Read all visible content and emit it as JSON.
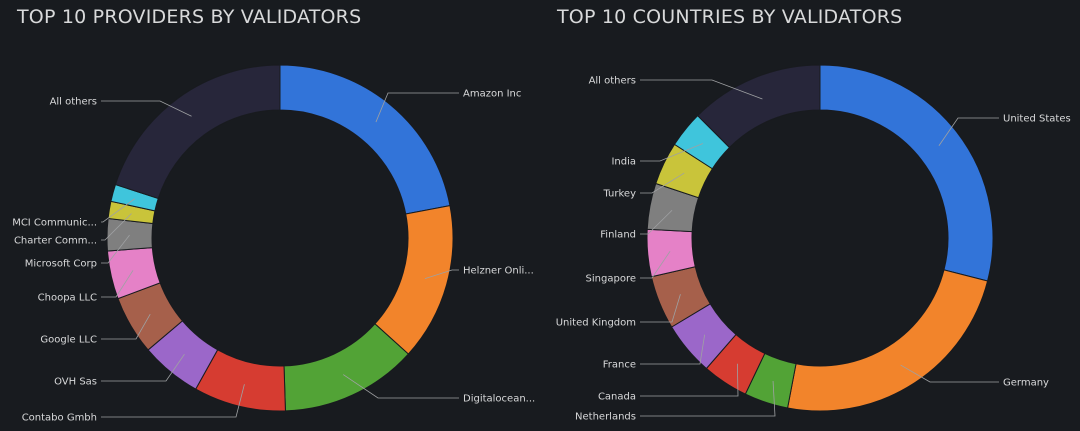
{
  "chart_data": [
    {
      "type": "pie",
      "title": "TOP 10 PROVIDERS BY VALIDATORS",
      "colors": [
        "#3274d9",
        "#f2842b",
        "#52a336",
        "#d63c31",
        "#9b67c9",
        "#a6604b",
        "#e581c7",
        "#7f7f7f",
        "#c9c43a",
        "#3fc5dc",
        "#27263a"
      ],
      "slices": [
        {
          "label": "Amazon Inc",
          "value": 22.0
        },
        {
          "label": "Helzner Onli...",
          "value": 14.7
        },
        {
          "label": "Digitalocean...",
          "value": 12.8
        },
        {
          "label": "Contabo Gmbh",
          "value": 8.6
        },
        {
          "label": "OVH Sas",
          "value": 5.7
        },
        {
          "label": "Google LLC",
          "value": 5.5
        },
        {
          "label": "Choopa LLC",
          "value": 4.5
        },
        {
          "label": "Microsoft Corp",
          "value": 3.0
        },
        {
          "label": "Charter Comm...",
          "value": 1.6
        },
        {
          "label": "MCI Communic...",
          "value": 1.6
        },
        {
          "label": "All others",
          "value": 20.0
        }
      ]
    },
    {
      "type": "pie",
      "title": "TOP 10 COUNTRIES BY VALIDATORS",
      "colors": [
        "#3274d9",
        "#f2842b",
        "#52a336",
        "#d63c31",
        "#9b67c9",
        "#a6604b",
        "#e581c7",
        "#7f7f7f",
        "#c9c43a",
        "#3fc5dc",
        "#27263a"
      ],
      "slices": [
        {
          "label": "United States",
          "value": 29.0
        },
        {
          "label": "Germany",
          "value": 24.0
        },
        {
          "label": "Netherlands",
          "value": 4.1
        },
        {
          "label": "Canada",
          "value": 4.3
        },
        {
          "label": "France",
          "value": 5.0
        },
        {
          "label": "United Kingdom",
          "value": 5.0
        },
        {
          "label": "Singapore",
          "value": 4.4
        },
        {
          "label": "Finland",
          "value": 4.3
        },
        {
          "label": "Turkey",
          "value": 4.0
        },
        {
          "label": "India",
          "value": 3.4
        },
        {
          "label": "All others",
          "value": 12.5
        }
      ]
    }
  ]
}
